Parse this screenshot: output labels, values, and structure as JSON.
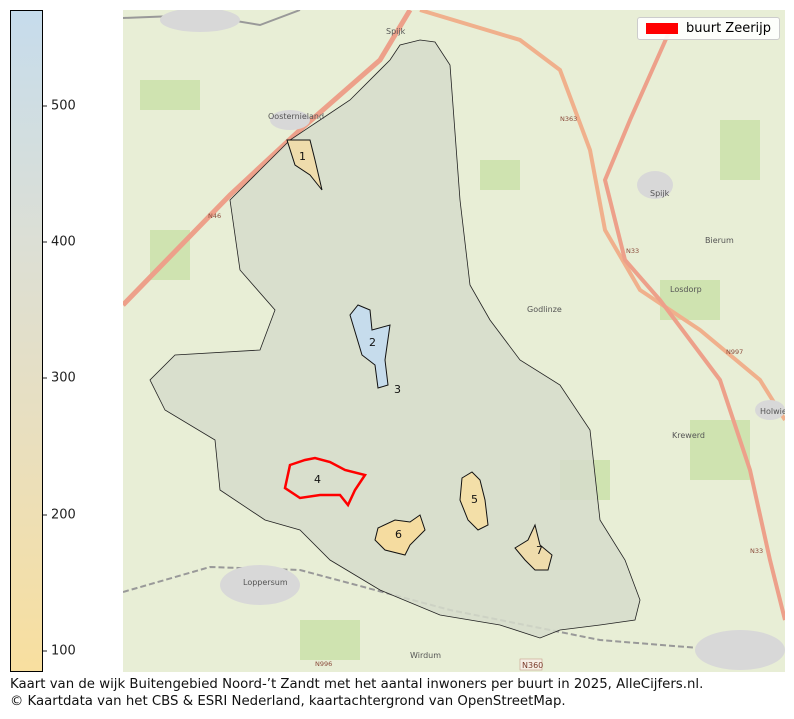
{
  "colorbar": {
    "min": 85,
    "max": 570,
    "ticks": [
      "500",
      "400",
      "300",
      "200",
      "100"
    ],
    "tick_values": [
      500,
      400,
      300,
      200,
      100
    ],
    "colors": [
      "#c6dcec",
      "#dcdfd5",
      "#f8df9f"
    ]
  },
  "legend": {
    "label": "buurt Zeerijp",
    "color": "#ff0000"
  },
  "map": {
    "neighbourhood_labels": [
      "1",
      "2",
      "3",
      "4",
      "5",
      "6",
      "7"
    ],
    "places": [
      "Oosternieland",
      "Spijk",
      "Bierum",
      "Godlinze",
      "Losdorp",
      "Krewerd",
      "Holwierde",
      "Loppersum",
      "Wirdum",
      "Spijk"
    ],
    "roads": [
      "N46",
      "N363",
      "N33",
      "N997",
      "N33",
      "N996",
      "N360"
    ]
  },
  "caption": {
    "line1": "Kaart van de wijk Buitengebied Noord-’t Zandt met het aantal inwoners per buurt in 2025, AlleCijfers.nl.",
    "line2": "© Kaartdata van het CBS & ESRI Nederland, kaartachtergrond van OpenStreetMap."
  }
}
